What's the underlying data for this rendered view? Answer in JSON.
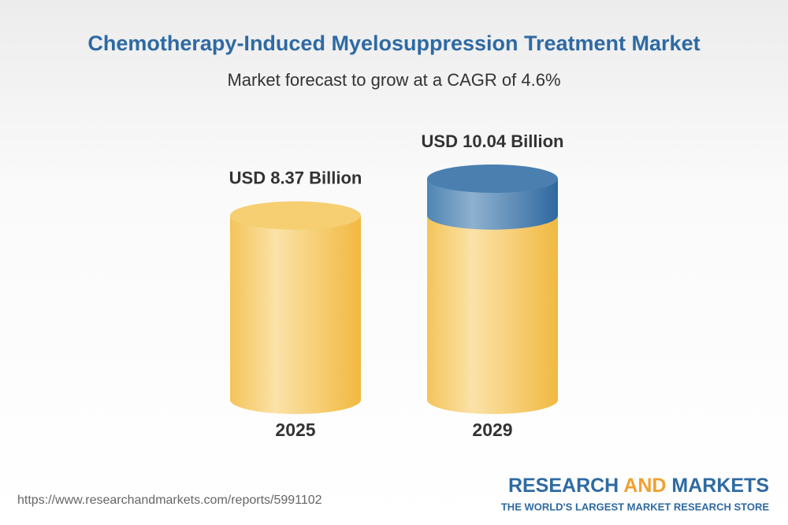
{
  "chart_data": {
    "type": "bar",
    "title": "Chemotherapy-Induced Myelosuppression Treatment Market",
    "subtitle": "Market forecast to grow at a CAGR of 4.6%",
    "categories": [
      "2025",
      "2029"
    ],
    "values": [
      8.37,
      10.04
    ],
    "value_labels": [
      "USD 8.37 Billion",
      "USD 10.04 Billion"
    ],
    "color": "#f3c456",
    "growth_color": "#3f7bab"
  },
  "footer": {
    "url": "https://www.researchandmarkets.com/reports/5991102",
    "logo": {
      "words": [
        "RESEARCH",
        "AND",
        "MARKETS"
      ],
      "tagline": "THE WORLD'S LARGEST MARKET RESEARCH STORE"
    }
  }
}
